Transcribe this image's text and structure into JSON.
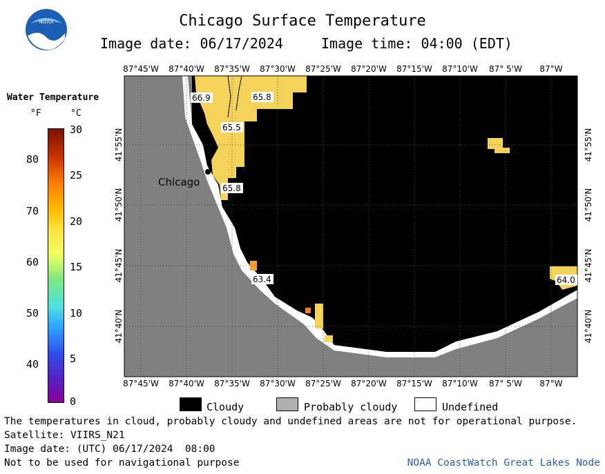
{
  "header": {
    "title": "Chicago Surface Temperature",
    "image_date": "Image date: 06/17/2024",
    "image_time": "Image time: 04:00 (EDT)"
  },
  "legend": {
    "title": "Water Temperature",
    "unit_f": "°F",
    "unit_c": "°C",
    "f_ticks": [
      "80",
      "70",
      "60",
      "50",
      "40"
    ],
    "c_ticks": [
      "30",
      "25",
      "20",
      "15",
      "10",
      "5",
      "0"
    ],
    "colors": {
      "top": "#8b1a00",
      "orange": "#ff7f00",
      "yellow": "#ffe84a",
      "green": "#7fe87f",
      "cyan": "#4fe0e0",
      "blue": "#2f6fe8",
      "purple": "#7a00a0"
    }
  },
  "map": {
    "lon_labels": [
      "87°45'W",
      "87°40'W",
      "87°35'W",
      "87°30'W",
      "87°25'W",
      "87°20'W",
      "87°15'W",
      "87°10'W",
      "87° 5'W",
      "87°W"
    ],
    "lat_labels": [
      "41°55'N",
      "41°50'N",
      "41°45'N",
      "41°40'N"
    ],
    "city_label": "Chicago",
    "temp_labels": [
      "66.9",
      "65.8",
      "65.5",
      "65.8",
      "63.4",
      "64.0"
    ],
    "colors": {
      "land": "#808080",
      "cloud": "#000000",
      "warm_water": "#f5d25a",
      "grid": "#555555"
    }
  },
  "key": {
    "cloudy": "Cloudy",
    "probably_cloudy": "Probably cloudy",
    "undefined": "Undefined"
  },
  "notes": {
    "line1": "The temperatures in cloud, probably cloudy and undefined areas are not for operational purpose.",
    "line2": "Satellite: VIIRS_N21",
    "line3": "Image date: (UTC) 06/17/2024  08:00",
    "line4": "Not to be used for navigational purpose"
  },
  "credit": "NOAA CoastWatch Great Lakes Node"
}
